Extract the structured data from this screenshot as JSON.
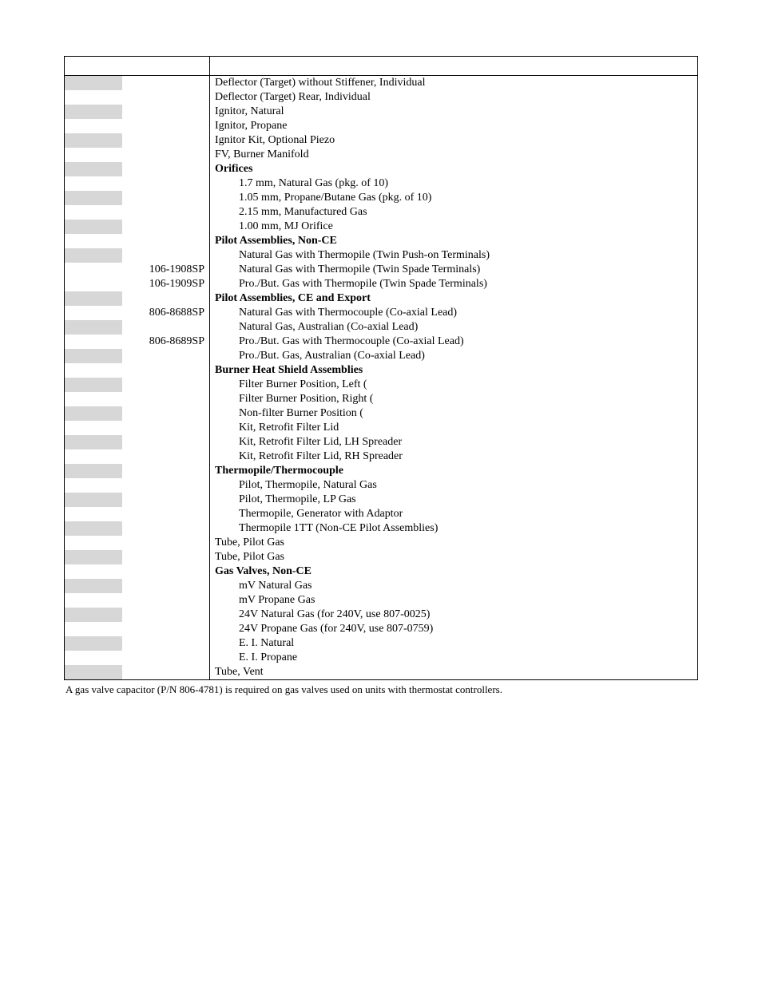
{
  "rows": [
    {
      "shade": true,
      "partno": "",
      "desc": "Deflector (Target) without Stiffener, Individual",
      "indent": false,
      "bold": false
    },
    {
      "shade": false,
      "partno": "",
      "desc": "Deflector (Target) Rear, Individual",
      "indent": false,
      "bold": false
    },
    {
      "shade": true,
      "partno": "",
      "desc": "Ignitor, Natural",
      "indent": false,
      "bold": false
    },
    {
      "shade": false,
      "partno": "",
      "desc": "Ignitor, Propane",
      "indent": false,
      "bold": false
    },
    {
      "shade": true,
      "partno": "",
      "desc": "Ignitor Kit, Optional Piezo",
      "indent": false,
      "bold": false
    },
    {
      "shade": false,
      "partno": "",
      "desc": "FV, Burner Manifold",
      "indent": false,
      "bold": false
    },
    {
      "shade": true,
      "partno": "",
      "desc": "Orifices",
      "indent": false,
      "bold": true
    },
    {
      "shade": false,
      "partno": "",
      "desc": "1.7 mm, Natural Gas (pkg. of 10)",
      "indent": true,
      "bold": false
    },
    {
      "shade": true,
      "partno": "",
      "desc": "1.05 mm, Propane/Butane Gas (pkg. of 10)",
      "indent": true,
      "bold": false
    },
    {
      "shade": false,
      "partno": "",
      "desc": "2.15 mm, Manufactured Gas",
      "indent": true,
      "bold": false
    },
    {
      "shade": true,
      "partno": "",
      "desc": "1.00 mm, MJ Orifice",
      "indent": true,
      "bold": false
    },
    {
      "shade": false,
      "partno": "",
      "desc": "Pilot Assemblies, Non-CE",
      "indent": false,
      "bold": true
    },
    {
      "shade": true,
      "partno": "",
      "desc": "Natural Gas with Thermopile (Twin Push-on Terminals)",
      "indent": true,
      "bold": false
    },
    {
      "shade": false,
      "partno": "106-1908SP",
      "desc": "Natural Gas with Thermopile (Twin Spade Terminals)",
      "indent": true,
      "bold": false
    },
    {
      "shade": false,
      "partno": "106-1909SP",
      "desc": "Pro./But. Gas with Thermopile (Twin Spade Terminals)",
      "indent": true,
      "bold": false
    },
    {
      "shade": true,
      "partno": "",
      "desc": "Pilot Assemblies, CE and Export",
      "indent": false,
      "bold": true
    },
    {
      "shade": false,
      "partno": "806-8688SP",
      "desc": "Natural Gas with Thermocouple (Co-axial Lead)",
      "indent": true,
      "bold": false
    },
    {
      "shade": true,
      "partno": "",
      "desc": "Natural Gas, Australian (Co-axial Lead)",
      "indent": true,
      "bold": false
    },
    {
      "shade": false,
      "partno": "806-8689SP",
      "desc": "Pro./But. Gas with Thermocouple (Co-axial Lead)",
      "indent": true,
      "bold": false
    },
    {
      "shade": true,
      "partno": "",
      "desc": "Pro./But. Gas, Australian (Co-axial Lead)",
      "indent": true,
      "bold": false
    },
    {
      "shade": false,
      "partno": "",
      "desc": "Burner Heat Shield Assemblies",
      "indent": false,
      "bold": true
    },
    {
      "shade": true,
      "partno": "",
      "desc": "Filter Burner Position, Left (",
      "indent": true,
      "bold": false
    },
    {
      "shade": false,
      "partno": "",
      "desc": "Filter Burner Position, Right (",
      "indent": true,
      "bold": false
    },
    {
      "shade": true,
      "partno": "",
      "desc": "Non-filter Burner Position (",
      "indent": true,
      "bold": false
    },
    {
      "shade": false,
      "partno": "",
      "desc": "Kit, Retrofit Filter Lid",
      "indent": true,
      "bold": false
    },
    {
      "shade": true,
      "partno": "",
      "desc": "Kit, Retrofit Filter Lid, LH Spreader",
      "indent": true,
      "bold": false
    },
    {
      "shade": false,
      "partno": "",
      "desc": "Kit, Retrofit Filter Lid, RH Spreader",
      "indent": true,
      "bold": false
    },
    {
      "shade": true,
      "partno": "",
      "desc": "Thermopile/Thermocouple",
      "indent": false,
      "bold": true
    },
    {
      "shade": false,
      "partno": "",
      "desc": "Pilot, Thermopile, Natural Gas",
      "indent": true,
      "bold": false
    },
    {
      "shade": true,
      "partno": "",
      "desc": "Pilot, Thermopile, LP Gas",
      "indent": true,
      "bold": false
    },
    {
      "shade": false,
      "partno": "",
      "desc": "Thermopile, Generator with Adaptor",
      "indent": true,
      "bold": false
    },
    {
      "shade": true,
      "partno": "",
      "desc": "Thermopile 1TT (Non-CE Pilot Assemblies)",
      "indent": true,
      "bold": false
    },
    {
      "shade": false,
      "partno": "",
      "desc": "Tube, Pilot Gas",
      "indent": false,
      "bold": false
    },
    {
      "shade": true,
      "partno": "",
      "desc": "Tube, Pilot Gas",
      "indent": false,
      "bold": false
    },
    {
      "shade": false,
      "partno": "",
      "desc": "Gas Valves, Non-CE",
      "indent": false,
      "bold": true
    },
    {
      "shade": true,
      "partno": "",
      "desc": "mV Natural Gas",
      "indent": true,
      "bold": false
    },
    {
      "shade": false,
      "partno": "",
      "desc": "mV Propane Gas",
      "indent": true,
      "bold": false
    },
    {
      "shade": true,
      "partno": "",
      "desc": "24V Natural Gas (for 240V, use 807-0025)",
      "indent": true,
      "bold": false
    },
    {
      "shade": false,
      "partno": "",
      "desc": "24V Propane Gas (for 240V, use 807-0759)",
      "indent": true,
      "bold": false
    },
    {
      "shade": true,
      "partno": "",
      "desc": "E. I. Natural",
      "indent": true,
      "bold": false
    },
    {
      "shade": false,
      "partno": "",
      "desc": "E. I. Propane",
      "indent": true,
      "bold": false
    },
    {
      "shade": true,
      "partno": "",
      "desc": "Tube, Vent",
      "indent": false,
      "bold": false
    }
  ],
  "footnote": "A gas valve capacitor (P/N 806-4781) is required on gas valves used on units with thermostat controllers."
}
